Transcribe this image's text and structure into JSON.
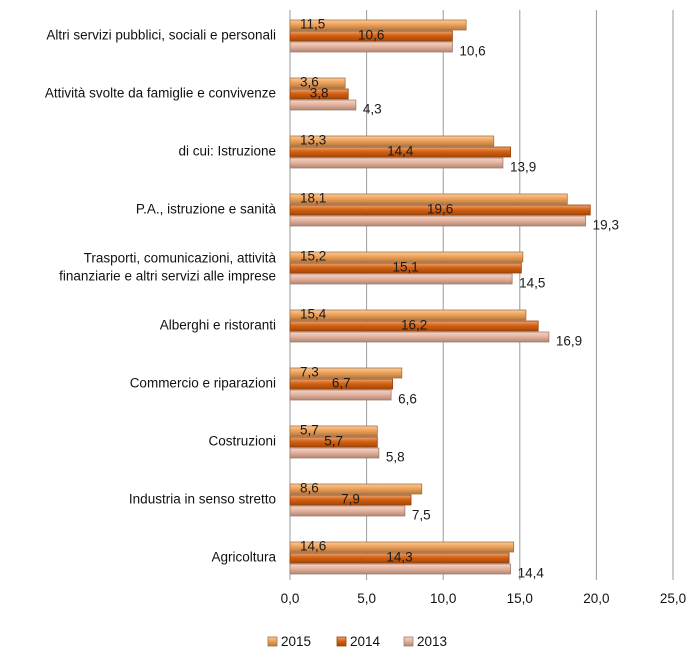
{
  "chart_data": {
    "type": "bar",
    "orientation": "horizontal",
    "categories": [
      [
        "Altri servizi pubblici, sociali e personali"
      ],
      [
        "Attività svolte da famiglie e convivenze"
      ],
      [
        "di cui: Istruzione"
      ],
      [
        "P.A., istruzione e sanità"
      ],
      [
        "Trasporti, comunicazioni, attività",
        "finanziarie e altri servizi alle imprese"
      ],
      [
        "Alberghi e ristoranti"
      ],
      [
        "Commercio e riparazioni"
      ],
      [
        "Costruzioni"
      ],
      [
        "Industria in senso stretto"
      ],
      [
        "Agricoltura"
      ]
    ],
    "series": [
      {
        "name": "2015",
        "color": "#f0a257",
        "values": [
          11.5,
          3.6,
          13.3,
          18.1,
          15.2,
          15.4,
          7.3,
          5.7,
          8.6,
          14.6
        ],
        "labels": [
          "11,5",
          "3,6",
          "13,3",
          "18,1",
          "15,2",
          "15,4",
          "7,3",
          "5,7",
          "8,6",
          "14,6"
        ]
      },
      {
        "name": "2014",
        "color": "#d7600f",
        "values": [
          10.6,
          3.8,
          14.4,
          19.6,
          15.1,
          16.2,
          6.7,
          5.7,
          7.9,
          14.3
        ],
        "labels": [
          "10,6",
          "3,8",
          "14,4",
          "19,6",
          "15,1",
          "16,2",
          "6,7",
          "5,7",
          "7,9",
          "14,3"
        ]
      },
      {
        "name": "2013",
        "color": "#e7b49e",
        "values": [
          10.6,
          4.3,
          13.9,
          19.3,
          14.5,
          16.9,
          6.6,
          5.8,
          7.5,
          14.4
        ],
        "labels": [
          "10,6",
          "4,3",
          "13,9",
          "19,3",
          "14,5",
          "16,9",
          "6,6",
          "5,8",
          "7,5",
          "14,4"
        ]
      }
    ],
    "x_ticks": [
      0,
      5,
      10,
      15,
      20,
      25
    ],
    "x_tick_labels": [
      "0,0",
      "5,0",
      "10,0",
      "15,0",
      "20,0",
      "25,0"
    ],
    "xlim": [
      0,
      25
    ],
    "grid": true,
    "legend_position": "bottom"
  }
}
